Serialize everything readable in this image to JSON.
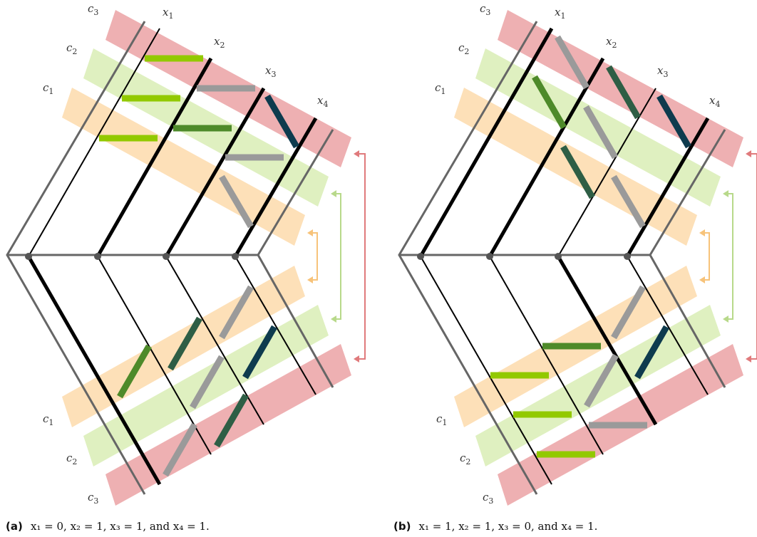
{
  "panels": [
    {
      "id": "a",
      "caption_tag": "(a)",
      "caption_text": "x₁ = 0, x₂ = 1, x₃ = 1, and x₄ = 1.",
      "assignment": {
        "x1": 0,
        "x2": 1,
        "x3": 1,
        "x4": 1
      },
      "clause_labels": [
        "c3",
        "c2",
        "c1",
        "c1",
        "c2",
        "c3"
      ],
      "variable_labels": [
        "x1",
        "x2",
        "x3",
        "x4"
      ]
    },
    {
      "id": "b",
      "caption_tag": "(b)",
      "caption_text": "x₁ = 1, x₂ = 1, x₃ = 0, and x₄ = 1.",
      "assignment": {
        "x1": 1,
        "x2": 1,
        "x3": 0,
        "x4": 1
      },
      "clause_labels": [
        "c3",
        "c2",
        "c1",
        "c1",
        "c2",
        "c3"
      ],
      "variable_labels": [
        "x1",
        "x2",
        "x3",
        "x4"
      ]
    }
  ],
  "colors": {
    "c3_band": "#eeb0b2",
    "c2_band": "#dff0c0",
    "c1_band": "#fde0b8",
    "light_green": "#92c900",
    "mid_green": "#4e8a2a",
    "dark_green": "#2e5e45",
    "navy": "#0e3b4e",
    "grey_gadget": "#9a9a9a",
    "wire": "#666666",
    "arrow_c3": "#e07a7c",
    "arrow_c2": "#b8d98a",
    "arrow_c1": "#f7c37a"
  }
}
